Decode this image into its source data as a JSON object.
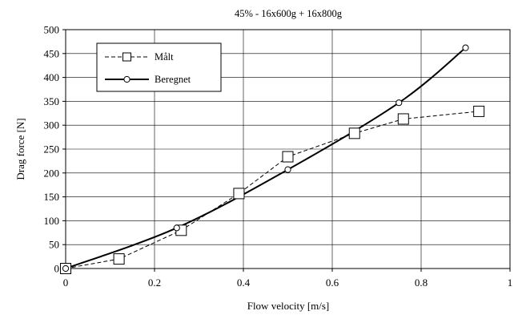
{
  "chart_data": {
    "type": "line",
    "title": "45% - 16x600g + 16x800g",
    "xlabel": "Flow velocity [m/s]",
    "ylabel": "Drag force  [N]",
    "xlim": [
      0,
      1
    ],
    "ylim": [
      0,
      500
    ],
    "x_ticks": [
      "0",
      "0.2",
      "0.4",
      "0.6",
      "0.8",
      "1"
    ],
    "y_ticks": [
      "0",
      "50",
      "100",
      "150",
      "200",
      "250",
      "300",
      "350",
      "400",
      "450",
      "500"
    ],
    "grid": true,
    "legend_position": "top-left",
    "series": [
      {
        "name": "Målt",
        "style": "dashed",
        "marker": "square",
        "color": "#000000",
        "x": [
          0,
          0.12,
          0.26,
          0.39,
          0.5,
          0.65,
          0.76,
          0.93
        ],
        "y": [
          0,
          20,
          80,
          157,
          234,
          283,
          313,
          329
        ]
      },
      {
        "name": "Beregnet",
        "style": "solid",
        "marker": "circle",
        "color": "#000000",
        "x": [
          0,
          0.25,
          0.5,
          0.75,
          0.9
        ],
        "y": [
          0,
          85,
          207,
          347,
          462
        ]
      }
    ]
  }
}
